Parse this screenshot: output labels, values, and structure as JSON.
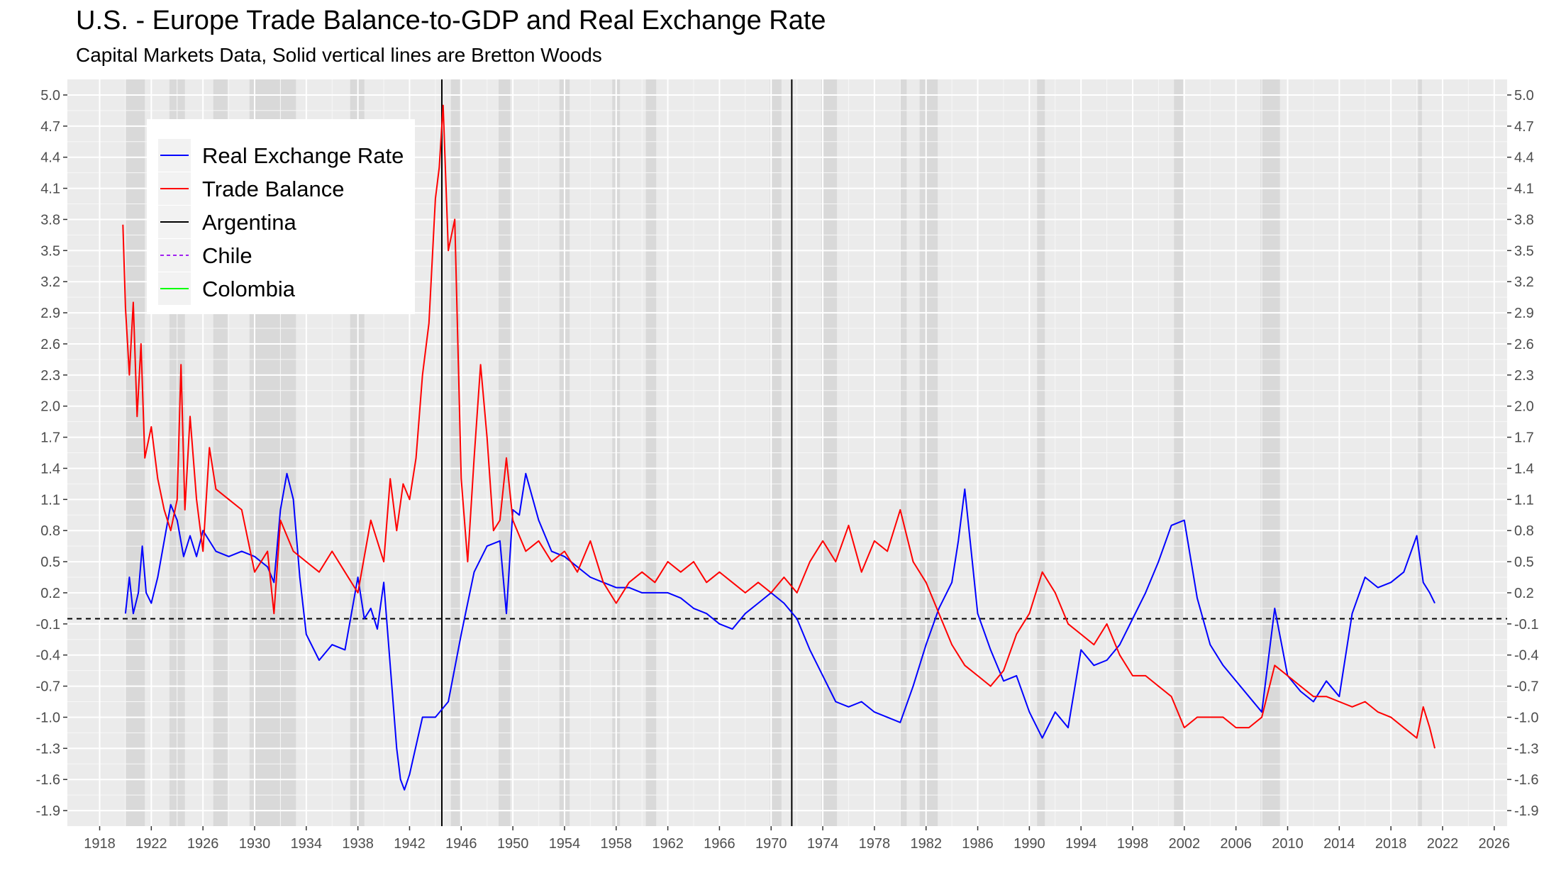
{
  "title": "U.S. - Europe Trade Balance-to-GDP and Real Exchange Rate",
  "subtitle": "Capital Markets Data, Solid vertical lines are Bretton Woods",
  "chart_data": {
    "type": "line",
    "title": "U.S. - Europe Trade Balance-to-GDP and Real Exchange Rate",
    "subtitle": "Capital Markets Data, Solid vertical lines are Bretton Woods",
    "xlabel": "",
    "ylabel": "",
    "xlim": [
      1915.5,
      2027.0
    ],
    "ylim": [
      -2.05,
      5.15
    ],
    "x_ticks": [
      1918,
      1922,
      1926,
      1930,
      1934,
      1938,
      1942,
      1946,
      1950,
      1954,
      1958,
      1962,
      1966,
      1970,
      1974,
      1978,
      1982,
      1986,
      1990,
      1994,
      1998,
      2002,
      2006,
      2010,
      2014,
      2018,
      2022,
      2026
    ],
    "y_ticks": [
      "5.0",
      "4.7",
      "4.4",
      "4.1",
      "3.8",
      "3.5",
      "3.2",
      "2.9",
      "2.6",
      "2.3",
      "2.0",
      "1.7",
      "1.4",
      "1.1",
      "0.8",
      "0.5",
      "0.2",
      "-0.1",
      "-0.4",
      "-0.7",
      "-1.0",
      "-1.3",
      "-1.6",
      "-1.9"
    ],
    "grid": true,
    "legend_position": "top-left",
    "recession_bands": [
      [
        1920.0,
        1921.5
      ],
      [
        1923.4,
        1924.6
      ],
      [
        1926.8,
        1927.9
      ],
      [
        1929.6,
        1933.2
      ],
      [
        1937.4,
        1938.5
      ],
      [
        1945.2,
        1945.9
      ],
      [
        1948.9,
        1949.8
      ],
      [
        1953.6,
        1954.4
      ],
      [
        1957.7,
        1958.3
      ],
      [
        1960.3,
        1961.1
      ],
      [
        1969.9,
        1970.8
      ],
      [
        1973.9,
        1975.1
      ],
      [
        1980.0,
        1980.5
      ],
      [
        1981.5,
        1982.9
      ],
      [
        1990.6,
        1991.2
      ],
      [
        2001.2,
        2001.9
      ],
      [
        2007.9,
        2009.4
      ],
      [
        2020.1,
        2020.4
      ]
    ],
    "reference_lines": {
      "vertical": [
        1944.5,
        1971.6
      ],
      "horizontal_dashed": -0.05
    },
    "legend": [
      {
        "name": "Real Exchange Rate",
        "color": "#0000ff",
        "dash": "solid"
      },
      {
        "name": "Trade Balance",
        "color": "#ff0000",
        "dash": "solid"
      },
      {
        "name": "Argentina",
        "color": "#000000",
        "dash": "solid"
      },
      {
        "name": "Chile",
        "color": "#a020f0",
        "dash": "dashed"
      },
      {
        "name": "Colombia",
        "color": "#00ff00",
        "dash": "solid"
      }
    ],
    "series": [
      {
        "name": "Real Exchange Rate",
        "color": "#0000ff",
        "x": [
          1920.0,
          1920.3,
          1920.6,
          1921.0,
          1921.3,
          1921.6,
          1922.0,
          1922.5,
          1923.0,
          1923.5,
          1924.0,
          1924.5,
          1925.0,
          1925.5,
          1926.0,
          1927.0,
          1928.0,
          1929.0,
          1930.0,
          1931.0,
          1931.5,
          1932.0,
          1932.5,
          1933.0,
          1933.5,
          1934.0,
          1935.0,
          1936.0,
          1937.0,
          1937.5,
          1938.0,
          1938.5,
          1939.0,
          1939.5,
          1940.0,
          1940.5,
          1941.0,
          1941.3,
          1941.6,
          1942.0,
          1943.0,
          1944.0,
          1945.0,
          1946.0,
          1947.0,
          1948.0,
          1949.0,
          1949.5,
          1950.0,
          1950.5,
          1951.0,
          1952.0,
          1953.0,
          1954.0,
          1955.0,
          1956.0,
          1957.0,
          1958.0,
          1959.0,
          1960.0,
          1961.0,
          1962.0,
          1963.0,
          1964.0,
          1965.0,
          1966.0,
          1967.0,
          1968.0,
          1969.0,
          1970.0,
          1971.0,
          1972.0,
          1973.0,
          1974.0,
          1975.0,
          1976.0,
          1977.0,
          1978.0,
          1979.0,
          1980.0,
          1981.0,
          1982.0,
          1983.0,
          1984.0,
          1984.5,
          1985.0,
          1986.0,
          1987.0,
          1988.0,
          1989.0,
          1990.0,
          1991.0,
          1992.0,
          1993.0,
          1994.0,
          1995.0,
          1996.0,
          1997.0,
          1998.0,
          1999.0,
          2000.0,
          2001.0,
          2002.0,
          2003.0,
          2004.0,
          2005.0,
          2006.0,
          2007.0,
          2008.0,
          2009.0,
          2010.0,
          2011.0,
          2012.0,
          2013.0,
          2014.0,
          2015.0,
          2016.0,
          2017.0,
          2018.0,
          2019.0,
          2020.0,
          2020.5,
          2021.0,
          2021.4
        ],
        "values": [
          0.0,
          0.35,
          0.0,
          0.2,
          0.65,
          0.2,
          0.1,
          0.35,
          0.7,
          1.05,
          0.9,
          0.55,
          0.75,
          0.55,
          0.8,
          0.6,
          0.55,
          0.6,
          0.55,
          0.45,
          0.3,
          1.0,
          1.35,
          1.1,
          0.35,
          -0.2,
          -0.45,
          -0.3,
          -0.35,
          0.0,
          0.35,
          -0.05,
          0.05,
          -0.15,
          0.3,
          -0.5,
          -1.3,
          -1.6,
          -1.7,
          -1.55,
          -1.0,
          -1.0,
          -0.85,
          -0.2,
          0.4,
          0.65,
          0.7,
          0.0,
          1.0,
          0.95,
          1.35,
          0.9,
          0.6,
          0.55,
          0.45,
          0.35,
          0.3,
          0.25,
          0.25,
          0.2,
          0.2,
          0.2,
          0.15,
          0.05,
          0.0,
          -0.1,
          -0.15,
          0.0,
          0.1,
          0.2,
          0.1,
          -0.05,
          -0.35,
          -0.6,
          -0.85,
          -0.9,
          -0.85,
          -0.95,
          -1.0,
          -1.05,
          -0.7,
          -0.3,
          0.05,
          0.3,
          0.7,
          1.2,
          0.0,
          -0.35,
          -0.65,
          -0.6,
          -0.95,
          -1.2,
          -0.95,
          -1.1,
          -0.35,
          -0.5,
          -0.45,
          -0.3,
          -0.05,
          0.2,
          0.5,
          0.85,
          0.9,
          0.15,
          -0.3,
          -0.5,
          -0.65,
          -0.8,
          -0.95,
          0.05,
          -0.6,
          -0.75,
          -0.85,
          -0.65,
          -0.8,
          0.0,
          0.35,
          0.25,
          0.3,
          0.4,
          0.75,
          0.3,
          0.2,
          0.1
        ]
      },
      {
        "name": "Trade Balance",
        "color": "#ff0000",
        "x": [
          1919.8,
          1920.0,
          1920.3,
          1920.6,
          1920.9,
          1921.2,
          1921.5,
          1922.0,
          1922.5,
          1923.0,
          1923.5,
          1924.0,
          1924.3,
          1924.6,
          1925.0,
          1925.5,
          1926.0,
          1926.5,
          1927.0,
          1928.0,
          1929.0,
          1930.0,
          1931.0,
          1931.5,
          1932.0,
          1933.0,
          1934.0,
          1935.0,
          1936.0,
          1937.0,
          1938.0,
          1939.0,
          1940.0,
          1940.5,
          1941.0,
          1941.5,
          1942.0,
          1942.5,
          1943.0,
          1943.5,
          1944.0,
          1944.3,
          1944.6,
          1945.0,
          1945.5,
          1946.0,
          1946.5,
          1947.0,
          1947.5,
          1948.0,
          1948.5,
          1949.0,
          1949.5,
          1950.0,
          1951.0,
          1952.0,
          1953.0,
          1954.0,
          1955.0,
          1956.0,
          1957.0,
          1958.0,
          1959.0,
          1960.0,
          1961.0,
          1962.0,
          1963.0,
          1964.0,
          1965.0,
          1966.0,
          1967.0,
          1968.0,
          1969.0,
          1970.0,
          1971.0,
          1972.0,
          1973.0,
          1974.0,
          1975.0,
          1976.0,
          1977.0,
          1978.0,
          1979.0,
          1980.0,
          1981.0,
          1982.0,
          1983.0,
          1984.0,
          1985.0,
          1986.0,
          1987.0,
          1988.0,
          1989.0,
          1990.0,
          1991.0,
          1992.0,
          1993.0,
          1994.0,
          1995.0,
          1996.0,
          1997.0,
          1998.0,
          1999.0,
          2000.0,
          2001.0,
          2002.0,
          2003.0,
          2004.0,
          2005.0,
          2006.0,
          2007.0,
          2008.0,
          2009.0,
          2010.0,
          2011.0,
          2012.0,
          2013.0,
          2014.0,
          2015.0,
          2016.0,
          2017.0,
          2018.0,
          2019.0,
          2020.0,
          2020.5,
          2021.0,
          2021.4
        ],
        "values": [
          3.75,
          2.95,
          2.3,
          3.0,
          1.9,
          2.6,
          1.5,
          1.8,
          1.3,
          1.0,
          0.8,
          1.1,
          2.4,
          1.0,
          1.9,
          1.1,
          0.6,
          1.6,
          1.2,
          1.1,
          1.0,
          0.4,
          0.6,
          0.0,
          0.9,
          0.6,
          0.5,
          0.4,
          0.6,
          0.4,
          0.2,
          0.9,
          0.5,
          1.3,
          0.8,
          1.25,
          1.1,
          1.5,
          2.3,
          2.8,
          4.0,
          4.3,
          4.9,
          3.5,
          3.8,
          1.3,
          0.5,
          1.5,
          2.4,
          1.7,
          0.8,
          0.9,
          1.5,
          0.9,
          0.6,
          0.7,
          0.5,
          0.6,
          0.4,
          0.7,
          0.3,
          0.1,
          0.3,
          0.4,
          0.3,
          0.5,
          0.4,
          0.5,
          0.3,
          0.4,
          0.3,
          0.2,
          0.3,
          0.2,
          0.35,
          0.2,
          0.5,
          0.7,
          0.5,
          0.85,
          0.4,
          0.7,
          0.6,
          1.0,
          0.5,
          0.3,
          0.0,
          -0.3,
          -0.5,
          -0.6,
          -0.7,
          -0.55,
          -0.2,
          0.0,
          0.4,
          0.2,
          -0.1,
          -0.2,
          -0.3,
          -0.1,
          -0.4,
          -0.6,
          -0.6,
          -0.7,
          -0.8,
          -1.1,
          -1.0,
          -1.0,
          -1.0,
          -1.1,
          -1.1,
          -1.0,
          -0.5,
          -0.6,
          -0.7,
          -0.8,
          -0.8,
          -0.85,
          -0.9,
          -0.85,
          -0.95,
          -1.0,
          -1.1,
          -1.2,
          -0.9,
          -1.1,
          -1.3
        ]
      }
    ]
  }
}
